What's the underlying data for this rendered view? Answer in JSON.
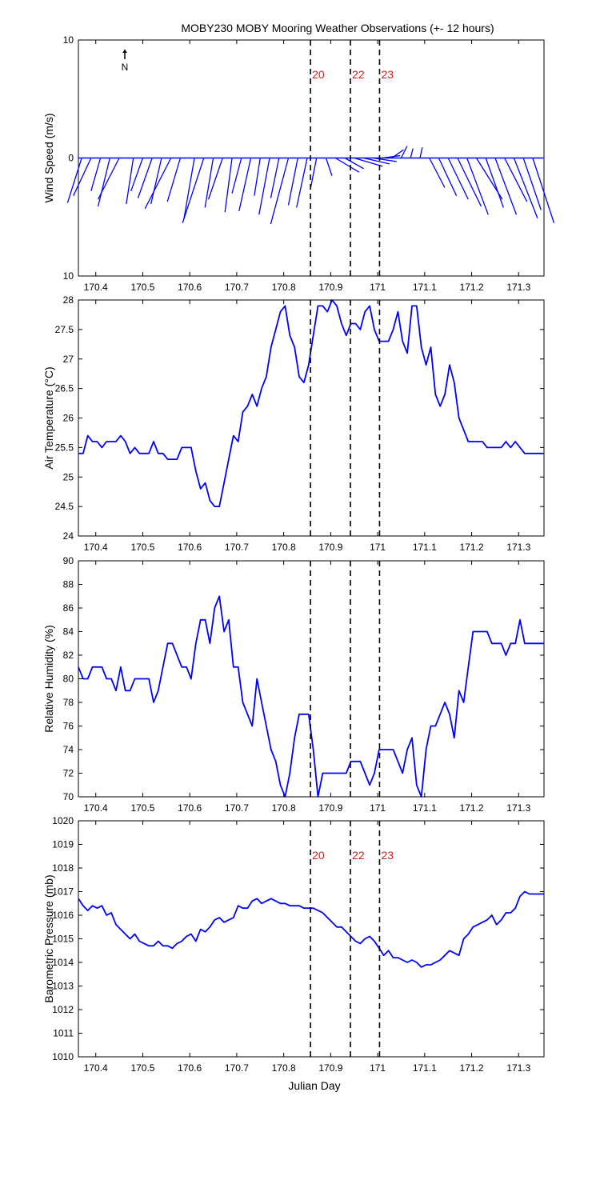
{
  "title": "MOBY230 MOBY Mooring Weather Observations (+- 12 hours)",
  "colors": {
    "series": "#0000ff",
    "marker_line": "#000000",
    "marker_label": "#cc2222",
    "axes": "#000000"
  },
  "north_arrow_label": "N",
  "xlabel": "Julian Day",
  "x_ticks": [
    170.4,
    170.5,
    170.6,
    170.7,
    170.8,
    170.9,
    171,
    171.1,
    171.2,
    171.3
  ],
  "x_tick_labels": [
    "170.4",
    "170.5",
    "170.6",
    "170.7",
    "170.8",
    "170.9",
    "171",
    "171.1",
    "171.2",
    "171.3"
  ],
  "markers": [
    {
      "label": "20",
      "x": 170.857
    },
    {
      "label": "22",
      "x": 170.942
    },
    {
      "label": "23",
      "x": 171.004
    }
  ],
  "chart_data": [
    {
      "type": "line",
      "subtype": "wind-vectors",
      "ylabel": "Wind Speed (m/s)",
      "xlim": [
        170.363,
        171.354
      ],
      "ylim": [
        -10,
        10
      ],
      "y_ticks": [
        10,
        0,
        -10
      ],
      "y_tick_labels": [
        "10",
        "0",
        "10"
      ],
      "marker_labels_shown": true,
      "vectors": {
        "x": [
          170.37,
          170.39,
          170.41,
          170.43,
          170.45,
          170.48,
          170.5,
          170.52,
          170.54,
          170.56,
          170.58,
          170.61,
          170.63,
          170.65,
          170.67,
          170.69,
          170.71,
          170.73,
          170.75,
          170.77,
          170.79,
          170.81,
          170.83,
          170.85,
          170.87,
          170.89,
          170.91,
          170.93,
          170.95,
          170.97,
          170.99,
          171.01,
          171.03,
          171.05,
          171.07,
          171.09,
          171.11,
          171.13,
          171.15,
          171.17,
          171.19,
          171.21,
          171.23,
          171.25,
          171.27,
          171.29,
          171.31,
          171.33
        ],
        "u": [
          -1.2,
          -1.5,
          -0.8,
          -1.0,
          -1.8,
          -0.6,
          -1.0,
          -1.2,
          -0.9,
          -2.2,
          -1.1,
          -0.9,
          -1.8,
          -0.7,
          -1.2,
          -0.6,
          -0.8,
          -1.0,
          -0.5,
          -0.9,
          -0.7,
          -1.5,
          -0.8,
          -0.9,
          -0.5,
          0.5,
          2.0,
          1.6,
          2.4,
          2.2,
          2.0,
          1.5,
          1.0,
          0.5,
          0.2,
          0.2,
          1.3,
          1.5,
          1.7,
          2.0,
          1.8,
          2.2,
          1.5,
          1.8,
          1.9,
          2.0,
          1.5,
          1.8
        ],
        "v": [
          -3.8,
          -3.2,
          -2.8,
          -4.1,
          -3.5,
          -3.9,
          -2.8,
          -3.4,
          -3.9,
          -4.3,
          -3.7,
          -5.2,
          -5.5,
          -4.2,
          -3.5,
          -4.6,
          -3.0,
          -4.5,
          -3.2,
          -4.8,
          -3.4,
          -5.6,
          -4.0,
          -4.2,
          -2.5,
          -1.5,
          -1.2,
          -0.9,
          -0.7,
          -0.5,
          -0.3,
          0.2,
          0.7,
          1.0,
          0.8,
          0.9,
          -2.5,
          -3.2,
          -3.5,
          -4.1,
          -4.8,
          -3.5,
          -4.2,
          -4.8,
          -3.7,
          -5.1,
          -4.4,
          -5.5
        ]
      }
    },
    {
      "type": "line",
      "ylabel": "Air Temperature (°C)",
      "xlim": [
        170.363,
        171.354
      ],
      "ylim": [
        24,
        28
      ],
      "y_ticks": [
        24,
        24.5,
        25,
        25.5,
        26,
        26.5,
        27,
        27.5,
        28
      ],
      "y_tick_labels": [
        "24",
        "24.5",
        "25",
        "25.5",
        "26",
        "26.5",
        "27",
        "27.5",
        "28"
      ],
      "marker_labels_shown": false,
      "series": [
        {
          "x": [
            170.363,
            170.373,
            170.383,
            170.393,
            170.403,
            170.413,
            170.423,
            170.433,
            170.443,
            170.453,
            170.463,
            170.473,
            170.483,
            170.493,
            170.503,
            170.513,
            170.523,
            170.533,
            170.543,
            170.553,
            170.563,
            170.573,
            170.583,
            170.593,
            170.603,
            170.613,
            170.623,
            170.633,
            170.643,
            170.653,
            170.663,
            170.673,
            170.683,
            170.693,
            170.703,
            170.713,
            170.723,
            170.733,
            170.743,
            170.753,
            170.763,
            170.773,
            170.783,
            170.793,
            170.803,
            170.813,
            170.823,
            170.833,
            170.843,
            170.853,
            170.863,
            170.873,
            170.883,
            170.893,
            170.903,
            170.913,
            170.923,
            170.933,
            170.943,
            170.953,
            170.963,
            170.973,
            170.983,
            170.993,
            171.003,
            171.013,
            171.023,
            171.033,
            171.043,
            171.053,
            171.063,
            171.073,
            171.083,
            171.093,
            171.103,
            171.113,
            171.123,
            171.133,
            171.143,
            171.153,
            171.163,
            171.173,
            171.183,
            171.193,
            171.203,
            171.213,
            171.223,
            171.233,
            171.243,
            171.253,
            171.263,
            171.273,
            171.283,
            171.293,
            171.303,
            171.313,
            171.323,
            171.333,
            171.343,
            171.354
          ],
          "y": [
            25.4,
            25.4,
            25.7,
            25.6,
            25.6,
            25.5,
            25.6,
            25.6,
            25.6,
            25.7,
            25.6,
            25.4,
            25.5,
            25.4,
            25.4,
            25.4,
            25.6,
            25.4,
            25.4,
            25.3,
            25.3,
            25.3,
            25.5,
            25.5,
            25.5,
            25.1,
            24.8,
            24.9,
            24.6,
            24.5,
            24.5,
            24.9,
            25.3,
            25.7,
            25.6,
            26.1,
            26.2,
            26.4,
            26.2,
            26.5,
            26.7,
            27.2,
            27.5,
            27.8,
            27.9,
            27.4,
            27.2,
            26.7,
            26.6,
            26.9,
            27.4,
            27.9,
            27.9,
            27.8,
            28.0,
            27.9,
            27.6,
            27.4,
            27.6,
            27.6,
            27.5,
            27.8,
            27.9,
            27.5,
            27.3,
            27.3,
            27.3,
            27.5,
            27.8,
            27.3,
            27.1,
            27.9,
            27.9,
            27.2,
            26.9,
            27.2,
            26.4,
            26.2,
            26.4,
            26.9,
            26.6,
            26.0,
            25.8,
            25.6,
            25.6,
            25.6,
            25.6,
            25.5,
            25.5,
            25.5,
            25.5,
            25.6,
            25.5,
            25.6,
            25.5,
            25.4,
            25.4,
            25.4,
            25.4,
            25.4
          ]
        }
      ]
    },
    {
      "type": "line",
      "ylabel": "Relative Humidity (%)",
      "xlim": [
        170.363,
        171.354
      ],
      "ylim": [
        70,
        90
      ],
      "y_ticks": [
        70,
        72,
        74,
        76,
        78,
        80,
        82,
        84,
        86,
        88,
        90
      ],
      "y_tick_labels": [
        "70",
        "72",
        "74",
        "76",
        "78",
        "80",
        "82",
        "84",
        "86",
        "88",
        "90"
      ],
      "marker_labels_shown": false,
      "series": [
        {
          "x": [
            170.363,
            170.373,
            170.383,
            170.393,
            170.403,
            170.413,
            170.423,
            170.433,
            170.443,
            170.453,
            170.463,
            170.473,
            170.483,
            170.493,
            170.503,
            170.513,
            170.523,
            170.533,
            170.543,
            170.553,
            170.563,
            170.573,
            170.583,
            170.593,
            170.603,
            170.613,
            170.623,
            170.633,
            170.643,
            170.653,
            170.663,
            170.673,
            170.683,
            170.693,
            170.703,
            170.713,
            170.723,
            170.733,
            170.743,
            170.753,
            170.763,
            170.773,
            170.783,
            170.793,
            170.803,
            170.813,
            170.823,
            170.833,
            170.843,
            170.853,
            170.863,
            170.873,
            170.883,
            170.893,
            170.903,
            170.913,
            170.923,
            170.933,
            170.943,
            170.953,
            170.963,
            170.973,
            170.983,
            170.993,
            171.003,
            171.013,
            171.023,
            171.033,
            171.043,
            171.053,
            171.063,
            171.073,
            171.083,
            171.093,
            171.103,
            171.113,
            171.123,
            171.133,
            171.143,
            171.153,
            171.163,
            171.173,
            171.183,
            171.193,
            171.203,
            171.213,
            171.223,
            171.233,
            171.243,
            171.253,
            171.263,
            171.273,
            171.283,
            171.293,
            171.303,
            171.313,
            171.323,
            171.333,
            171.343,
            171.354
          ],
          "y": [
            81,
            80,
            80,
            81,
            81,
            81,
            80,
            80,
            79,
            81,
            79,
            79,
            80,
            80,
            80,
            80,
            78,
            79,
            81,
            83,
            83,
            82,
            81,
            81,
            80,
            83,
            85,
            85,
            83,
            86,
            87,
            84,
            85,
            81,
            81,
            78,
            77,
            76,
            80,
            78,
            76,
            74,
            73,
            71,
            70,
            72,
            75,
            77,
            77,
            77,
            74,
            70,
            72,
            72,
            72,
            72,
            72,
            72,
            73,
            73,
            73,
            72,
            71,
            72,
            74,
            74,
            74,
            74,
            73,
            72,
            74,
            75,
            71,
            70,
            74,
            76,
            76,
            77,
            78,
            77,
            75,
            79,
            78,
            81,
            84,
            84,
            84,
            84,
            83,
            83,
            83,
            82,
            83,
            83,
            85,
            83,
            83,
            83,
            83,
            83
          ]
        }
      ]
    },
    {
      "type": "line",
      "ylabel": "Barometric Pressure (mb)",
      "xlim": [
        170.363,
        171.354
      ],
      "ylim": [
        1010,
        1020
      ],
      "y_ticks": [
        1010,
        1011,
        1012,
        1013,
        1014,
        1015,
        1016,
        1017,
        1018,
        1019,
        1020
      ],
      "y_tick_labels": [
        "1010",
        "1011",
        "1012",
        "1013",
        "1014",
        "1015",
        "1016",
        "1017",
        "1018",
        "1019",
        "1020"
      ],
      "marker_labels_shown": true,
      "series": [
        {
          "x": [
            170.363,
            170.373,
            170.383,
            170.393,
            170.403,
            170.413,
            170.423,
            170.433,
            170.443,
            170.453,
            170.463,
            170.473,
            170.483,
            170.493,
            170.503,
            170.513,
            170.523,
            170.533,
            170.543,
            170.553,
            170.563,
            170.573,
            170.583,
            170.593,
            170.603,
            170.613,
            170.623,
            170.633,
            170.643,
            170.653,
            170.663,
            170.673,
            170.683,
            170.693,
            170.703,
            170.713,
            170.723,
            170.733,
            170.743,
            170.753,
            170.763,
            170.773,
            170.783,
            170.793,
            170.803,
            170.813,
            170.823,
            170.833,
            170.843,
            170.853,
            170.863,
            170.873,
            170.883,
            170.893,
            170.903,
            170.913,
            170.923,
            170.933,
            170.943,
            170.953,
            170.963,
            170.973,
            170.983,
            170.993,
            171.003,
            171.013,
            171.023,
            171.033,
            171.043,
            171.053,
            171.063,
            171.073,
            171.083,
            171.093,
            171.103,
            171.113,
            171.123,
            171.133,
            171.143,
            171.153,
            171.163,
            171.173,
            171.183,
            171.193,
            171.203,
            171.213,
            171.223,
            171.233,
            171.243,
            171.253,
            171.263,
            171.273,
            171.283,
            171.293,
            171.303,
            171.313,
            171.323,
            171.333,
            171.343,
            171.354
          ],
          "y": [
            1016.7,
            1016.4,
            1016.2,
            1016.4,
            1016.3,
            1016.4,
            1016.0,
            1016.1,
            1015.6,
            1015.4,
            1015.2,
            1015.0,
            1015.2,
            1014.9,
            1014.8,
            1014.7,
            1014.7,
            1014.9,
            1014.7,
            1014.7,
            1014.6,
            1014.8,
            1014.9,
            1015.1,
            1015.2,
            1014.9,
            1015.4,
            1015.3,
            1015.5,
            1015.8,
            1015.9,
            1015.7,
            1015.8,
            1015.9,
            1016.4,
            1016.3,
            1016.3,
            1016.6,
            1016.7,
            1016.5,
            1016.6,
            1016.7,
            1016.6,
            1016.5,
            1016.5,
            1016.4,
            1016.4,
            1016.4,
            1016.3,
            1016.3,
            1016.3,
            1016.2,
            1016.1,
            1015.9,
            1015.7,
            1015.5,
            1015.5,
            1015.3,
            1015.1,
            1014.9,
            1014.8,
            1015.0,
            1015.1,
            1014.9,
            1014.6,
            1014.3,
            1014.5,
            1014.2,
            1014.2,
            1014.1,
            1014.0,
            1014.1,
            1014.0,
            1013.8,
            1013.9,
            1013.9,
            1014.0,
            1014.1,
            1014.3,
            1014.5,
            1014.4,
            1014.3,
            1015.0,
            1015.2,
            1015.5,
            1015.6,
            1015.7,
            1015.8,
            1016.0,
            1015.6,
            1015.8,
            1016.1,
            1016.1,
            1016.3,
            1016.8,
            1017.0,
            1016.9,
            1016.9,
            1016.9,
            1016.9
          ]
        }
      ]
    }
  ]
}
